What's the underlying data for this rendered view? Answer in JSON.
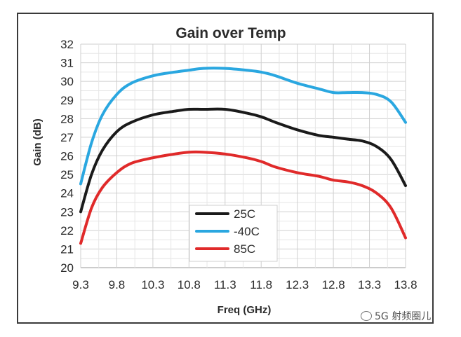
{
  "chart_data": {
    "type": "line",
    "title": "Gain over Temp",
    "xlabel": "Freq (GHz)",
    "ylabel": "Gain (dB)",
    "xlim": [
      9.3,
      13.8
    ],
    "ylim": [
      20,
      32
    ],
    "xticks": [
      "9.3",
      "9.8",
      "10.3",
      "10.8",
      "11.3",
      "11.8",
      "12.3",
      "12.8",
      "13.3",
      "13.8"
    ],
    "yticks": [
      "20",
      "21",
      "22",
      "23",
      "24",
      "25",
      "26",
      "27",
      "28",
      "29",
      "30",
      "31",
      "32"
    ],
    "grid": true,
    "legend_position": "bottom-center",
    "series": [
      {
        "name": "25C",
        "color": "#1a1a1a",
        "x": [
          9.3,
          9.45,
          9.6,
          9.8,
          10.0,
          10.3,
          10.6,
          10.8,
          11.0,
          11.3,
          11.6,
          11.8,
          12.0,
          12.3,
          12.6,
          12.8,
          13.0,
          13.2,
          13.4,
          13.6,
          13.8
        ],
        "y": [
          23.0,
          25.0,
          26.3,
          27.3,
          27.8,
          28.2,
          28.4,
          28.5,
          28.5,
          28.5,
          28.3,
          28.1,
          27.8,
          27.4,
          27.1,
          27.0,
          26.9,
          26.8,
          26.5,
          25.8,
          24.4
        ]
      },
      {
        "name": "-40C",
        "color": "#2aa7e0",
        "x": [
          9.3,
          9.45,
          9.6,
          9.8,
          10.0,
          10.3,
          10.6,
          10.8,
          11.0,
          11.3,
          11.6,
          11.8,
          12.0,
          12.3,
          12.6,
          12.8,
          13.0,
          13.2,
          13.4,
          13.6,
          13.8
        ],
        "y": [
          24.5,
          26.7,
          28.2,
          29.3,
          29.9,
          30.3,
          30.5,
          30.6,
          30.7,
          30.7,
          30.6,
          30.5,
          30.3,
          29.9,
          29.6,
          29.4,
          29.4,
          29.4,
          29.3,
          28.9,
          27.8
        ]
      },
      {
        "name": "85C",
        "color": "#e02a2a",
        "x": [
          9.3,
          9.45,
          9.6,
          9.8,
          10.0,
          10.3,
          10.6,
          10.8,
          11.0,
          11.3,
          11.6,
          11.8,
          12.0,
          12.3,
          12.6,
          12.8,
          13.0,
          13.2,
          13.4,
          13.6,
          13.8
        ],
        "y": [
          21.3,
          23.2,
          24.3,
          25.1,
          25.6,
          25.9,
          26.1,
          26.2,
          26.2,
          26.1,
          25.9,
          25.7,
          25.4,
          25.1,
          24.9,
          24.7,
          24.6,
          24.4,
          24.0,
          23.2,
          21.6
        ]
      }
    ]
  },
  "watermark": {
    "text": "5G 射频圈儿",
    "icon": "wechat-icon"
  }
}
